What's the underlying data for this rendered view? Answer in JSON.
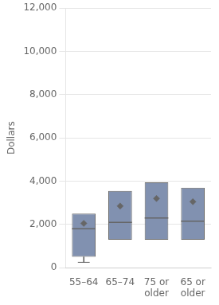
{
  "chart_data": {
    "type": "box",
    "categories": [
      "55–64",
      "65–74",
      "75 or\nolder",
      "65 or\nolder"
    ],
    "boxes": [
      {
        "whislo": 250,
        "q1": 500,
        "med": 1800,
        "q3": 2500,
        "whishi": 2500,
        "mean": 2050
      },
      {
        "whislo": 1300,
        "q1": 1300,
        "med": 2100,
        "q3": 3550,
        "whishi": 3550,
        "mean": 2850
      },
      {
        "whislo": 1300,
        "q1": 1300,
        "med": 2300,
        "q3": 3950,
        "whishi": 3950,
        "mean": 3200
      },
      {
        "whislo": 1300,
        "q1": 1300,
        "med": 2150,
        "q3": 3700,
        "whishi": 3700,
        "mean": 3050
      }
    ],
    "color": "#8191b0",
    "ylabel": "Dollars",
    "ylim": [
      0,
      12000
    ],
    "yticks": [
      0,
      {
        "value": 2000,
        "label": "2,000"
      },
      {
        "value": 4000,
        "label": "4,000"
      },
      {
        "value": 6000,
        "label": "6,000"
      },
      {
        "value": 8000,
        "label": "8,000"
      },
      {
        "value": 10000,
        "label": "10,000"
      },
      {
        "value": 12000,
        "label": "12,000"
      }
    ],
    "grid": true
  }
}
